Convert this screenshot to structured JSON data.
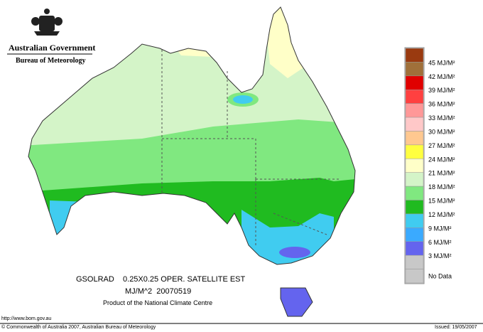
{
  "header": {
    "government": "Australian Government",
    "bureau": "Bureau of Meteorology"
  },
  "map": {
    "caption": [
      "GSOLRAD    0.25X0.25 OPER. SATELLITE EST",
      "MJ/M^2  20070519"
    ],
    "credit": "Product of the National Climate Centre"
  },
  "legend": {
    "colors": [
      "#9a3a10",
      "#a0703a",
      "#e00000",
      "#ff4040",
      "#ff9898",
      "#ffc8c8",
      "#ffc890",
      "#ffff40",
      "#ffffc8",
      "#d4f4c8",
      "#80e880",
      "#20bb20",
      "#40ccf0",
      "#3aaaff",
      "#6464ee",
      "#c8c8c8",
      "#c8c8c8"
    ],
    "labels": [
      "45 MJ/M²",
      "42 MJ/M²",
      "39 MJ/M²",
      "36 MJ/M²",
      "33 MJ/M²",
      "30 MJ/M²",
      "27 MJ/M²",
      "24 MJ/M²",
      "21 MJ/M²",
      "18 MJ/M²",
      "15 MJ/M²",
      "12 MJ/M²",
      "9 MJ/M²",
      "6 MJ/M²",
      "3 MJ/M²"
    ],
    "no_data": "No Data"
  },
  "footer": {
    "url": "http://www.bom.gov.au",
    "copyright": "© Commonwealth of Australia 2007, Australian Bureau of Meteorology",
    "issued": "Issued: 19/05/2007"
  }
}
